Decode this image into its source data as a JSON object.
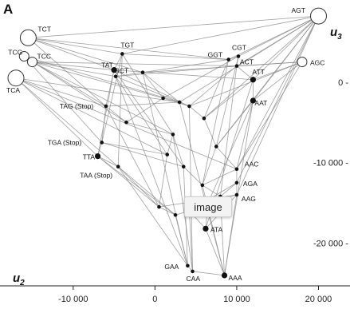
{
  "panel": {
    "letter": "A"
  },
  "axes": {
    "x_name": "u",
    "x_sub": "2",
    "y_name": "u",
    "y_sub": "3"
  },
  "overlay": {
    "button_label": "image"
  },
  "colors": {
    "edge": "#8a8a8a",
    "node": "#111111",
    "hollow_fill": "#ffffff",
    "axis": "#222222"
  },
  "chart_data": {
    "type": "scatter",
    "title": "",
    "xlabel": "u2",
    "ylabel": "u3",
    "x_ticks": [
      -10000,
      0,
      10000,
      20000
    ],
    "x_tick_labels": [
      "-10 000",
      "0",
      "10 000",
      "20 000"
    ],
    "y_ticks": [
      0,
      -10000,
      -20000
    ],
    "y_tick_labels": [
      "0 -",
      "-10 000 -",
      "-20 000 -"
    ],
    "xlim": [
      -17000,
      22000
    ],
    "ylim": [
      -25000,
      9000
    ],
    "grid": false,
    "nodes": [
      {
        "id": "TCT",
        "label": "TCT",
        "x": -15500,
        "y": 5500,
        "size": "large",
        "hollow": true
      },
      {
        "id": "TCG",
        "label": "TCG",
        "x": -16000,
        "y": 3200,
        "size": "small",
        "hollow": true
      },
      {
        "id": "TCC",
        "label": "TCC",
        "x": -15000,
        "y": 2500,
        "size": "small",
        "hollow": true
      },
      {
        "id": "TCA",
        "label": "TCA",
        "x": -17000,
        "y": 500,
        "size": "large",
        "hollow": true
      },
      {
        "id": "AGT",
        "label": "AGT",
        "x": 20000,
        "y": 8200,
        "size": "large",
        "hollow": true
      },
      {
        "id": "AGC",
        "label": "AGC",
        "x": 18000,
        "y": 2500,
        "size": "small",
        "hollow": true
      },
      {
        "id": "TGT",
        "label": "TGT",
        "x": -4000,
        "y": 3500,
        "size": "dot",
        "hollow": false
      },
      {
        "id": "TAT",
        "label": "TAT",
        "x": -5000,
        "y": 1500,
        "size": "medium",
        "hollow": false
      },
      {
        "id": "GCT",
        "label": "GCT",
        "x": -4800,
        "y": 700,
        "size": "dot",
        "hollow": false
      },
      {
        "id": "GGT",
        "label": "GGT",
        "x": 9000,
        "y": 2800,
        "size": "dot",
        "hollow": false
      },
      {
        "id": "CGT",
        "label": "CGT",
        "x": 10200,
        "y": 3200,
        "size": "dot",
        "hollow": false
      },
      {
        "id": "ACT",
        "label": "ACT",
        "x": 10000,
        "y": 2000,
        "size": "dot",
        "hollow": false
      },
      {
        "id": "ATT",
        "label": "ATT",
        "x": 12000,
        "y": 300,
        "size": "medium",
        "hollow": false
      },
      {
        "id": "AAT",
        "label": "AAT",
        "x": 12000,
        "y": -2300,
        "size": "medium",
        "hollow": false
      },
      {
        "id": "TAG",
        "label": "TAG (Stop)",
        "x": -6000,
        "y": -3000,
        "size": "dot",
        "hollow": false
      },
      {
        "id": "TGA",
        "label": "TGA (Stop)",
        "x": -6500,
        "y": -7500,
        "size": "dot",
        "hollow": false
      },
      {
        "id": "TTA",
        "label": "TTA",
        "x": -7000,
        "y": -9200,
        "size": "medium",
        "hollow": false
      },
      {
        "id": "TAA",
        "label": "TAA (Stop)",
        "x": -4500,
        "y": -10500,
        "size": "dot",
        "hollow": false
      },
      {
        "id": "AAC",
        "label": "AAC",
        "x": 10000,
        "y": -10800,
        "size": "dot",
        "hollow": false
      },
      {
        "id": "AGA",
        "label": "AGA",
        "x": 10000,
        "y": -12500,
        "size": "dot",
        "hollow": false
      },
      {
        "id": "AAG",
        "label": "AAG",
        "x": 10000,
        "y": -14000,
        "size": "dot",
        "hollow": false
      },
      {
        "id": "ATA",
        "label": "ATA",
        "x": 6200,
        "y": -18200,
        "size": "medium",
        "hollow": false
      },
      {
        "id": "GAA",
        "label": "GAA",
        "x": 4000,
        "y": -22800,
        "size": "dot",
        "hollow": false
      },
      {
        "id": "CAA",
        "label": "CAA",
        "x": 4600,
        "y": -23500,
        "size": "dot",
        "hollow": false
      },
      {
        "id": "AAA",
        "label": "AAA",
        "x": 8500,
        "y": -24000,
        "size": "medium",
        "hollow": false
      },
      {
        "id": "m1",
        "label": "",
        "x": -1500,
        "y": 1200,
        "size": "dot",
        "hollow": false
      },
      {
        "id": "m2",
        "label": "",
        "x": 3000,
        "y": -2500,
        "size": "dot",
        "hollow": false
      },
      {
        "id": "m3",
        "label": "",
        "x": 4200,
        "y": -3000,
        "size": "dot",
        "hollow": false
      },
      {
        "id": "m4",
        "label": "",
        "x": 2200,
        "y": -6500,
        "size": "dot",
        "hollow": false
      },
      {
        "id": "m5",
        "label": "",
        "x": 6000,
        "y": -4500,
        "size": "dot",
        "hollow": false
      },
      {
        "id": "m6",
        "label": "",
        "x": 7500,
        "y": -8000,
        "size": "dot",
        "hollow": false
      },
      {
        "id": "m7",
        "label": "",
        "x": 3500,
        "y": -10500,
        "size": "dot",
        "hollow": false
      },
      {
        "id": "m8",
        "label": "",
        "x": 1500,
        "y": -9000,
        "size": "dot",
        "hollow": false
      },
      {
        "id": "m9",
        "label": "",
        "x": 5800,
        "y": -12800,
        "size": "dot",
        "hollow": false
      },
      {
        "id": "m10",
        "label": "",
        "x": 8000,
        "y": -14200,
        "size": "dot",
        "hollow": false
      },
      {
        "id": "m11",
        "label": "",
        "x": 500,
        "y": -15500,
        "size": "dot",
        "hollow": false
      },
      {
        "id": "m12",
        "label": "",
        "x": 2500,
        "y": -16500,
        "size": "dot",
        "hollow": false
      },
      {
        "id": "m13",
        "label": "",
        "x": 4200,
        "y": -16000,
        "size": "dot",
        "hollow": false
      },
      {
        "id": "m14",
        "label": "",
        "x": 6500,
        "y": -15000,
        "size": "dot",
        "hollow": false
      },
      {
        "id": "m15",
        "label": "",
        "x": -3500,
        "y": -5000,
        "size": "dot",
        "hollow": false
      },
      {
        "id": "m16",
        "label": "",
        "x": 1000,
        "y": -2000,
        "size": "dot",
        "hollow": false
      }
    ],
    "edges": [
      [
        "TCT",
        "AGT"
      ],
      [
        "TCT",
        "TGT"
      ],
      [
        "TCT",
        "TAT"
      ],
      [
        "TCT",
        "TAG"
      ],
      [
        "TCT",
        "m1"
      ],
      [
        "TCT",
        "GGT"
      ],
      [
        "TCG",
        "TAG"
      ],
      [
        "TCG",
        "TGA"
      ],
      [
        "TCG",
        "m15"
      ],
      [
        "TCG",
        "m2"
      ],
      [
        "TCC",
        "TAT"
      ],
      [
        "TCC",
        "GCT"
      ],
      [
        "TCC",
        "m16"
      ],
      [
        "TCC",
        "m4"
      ],
      [
        "TCC",
        "ACT"
      ],
      [
        "TCA",
        "TAG"
      ],
      [
        "TCA",
        "TTA"
      ],
      [
        "TCA",
        "TAA"
      ],
      [
        "TCA",
        "m8"
      ],
      [
        "TCA",
        "m2"
      ],
      [
        "TCA",
        "AAC"
      ],
      [
        "AGT",
        "TGT"
      ],
      [
        "AGT",
        "GGT"
      ],
      [
        "AGT",
        "CGT"
      ],
      [
        "AGT",
        "ACT"
      ],
      [
        "AGT",
        "ATT"
      ],
      [
        "AGT",
        "AAT"
      ],
      [
        "AGT",
        "m2"
      ],
      [
        "AGT",
        "m5"
      ],
      [
        "AGT",
        "AAC"
      ],
      [
        "AGT",
        "AGA"
      ],
      [
        "AGT",
        "AAG"
      ],
      [
        "AGT",
        "m6"
      ],
      [
        "AGC",
        "AAT"
      ],
      [
        "AGC",
        "ATT"
      ],
      [
        "AGC",
        "ACT"
      ],
      [
        "AGC",
        "AAC"
      ],
      [
        "AGC",
        "m3"
      ],
      [
        "AGC",
        "m1"
      ],
      [
        "TGT",
        "TAT"
      ],
      [
        "TGT",
        "GGT"
      ],
      [
        "TGT",
        "TGA"
      ],
      [
        "TGT",
        "TAA"
      ],
      [
        "TGT",
        "m4"
      ],
      [
        "TAT",
        "TAG"
      ],
      [
        "TAT",
        "TTA"
      ],
      [
        "TAT",
        "ATT"
      ],
      [
        "TAT",
        "m3"
      ],
      [
        "TAT",
        "m7"
      ],
      [
        "GCT",
        "GGT"
      ],
      [
        "GCT",
        "ACT"
      ],
      [
        "GCT",
        "m2"
      ],
      [
        "GCT",
        "m8"
      ],
      [
        "GCT",
        "GAA"
      ],
      [
        "GGT",
        "CGT"
      ],
      [
        "GGT",
        "m5"
      ],
      [
        "GGT",
        "m9"
      ],
      [
        "CGT",
        "ACT"
      ],
      [
        "CGT",
        "m16"
      ],
      [
        "CGT",
        "m6"
      ],
      [
        "ACT",
        "ATT"
      ],
      [
        "ACT",
        "m3"
      ],
      [
        "ACT",
        "m10"
      ],
      [
        "ATT",
        "AAT"
      ],
      [
        "ATT",
        "m5"
      ],
      [
        "ATT",
        "ATA"
      ],
      [
        "AAT",
        "m6"
      ],
      [
        "AAT",
        "AAC"
      ],
      [
        "AAT",
        "m14"
      ],
      [
        "AAT",
        "AAA"
      ],
      [
        "TAG",
        "m2"
      ],
      [
        "TAG",
        "m15"
      ],
      [
        "TAG",
        "TGA"
      ],
      [
        "TAG",
        "m11"
      ],
      [
        "TGA",
        "TTA"
      ],
      [
        "TGA",
        "m7"
      ],
      [
        "TGA",
        "m8"
      ],
      [
        "TTA",
        "TAA"
      ],
      [
        "TTA",
        "m11"
      ],
      [
        "TTA",
        "m12"
      ],
      [
        "TAA",
        "m11"
      ],
      [
        "TAA",
        "m12"
      ],
      [
        "TAA",
        "GAA"
      ],
      [
        "AAC",
        "AGA"
      ],
      [
        "AAC",
        "m6"
      ],
      [
        "AAC",
        "m9"
      ],
      [
        "AGA",
        "AAG"
      ],
      [
        "AGA",
        "m13"
      ],
      [
        "AGA",
        "m10"
      ],
      [
        "AAG",
        "m14"
      ],
      [
        "AAG",
        "ATA"
      ],
      [
        "AAG",
        "AAA"
      ],
      [
        "AAG",
        "m11"
      ],
      [
        "ATA",
        "AAA"
      ],
      [
        "ATA",
        "m13"
      ],
      [
        "ATA",
        "m14"
      ],
      [
        "GAA",
        "CAA"
      ],
      [
        "GAA",
        "m12"
      ],
      [
        "GAA",
        "m7"
      ],
      [
        "GAA",
        "m1"
      ],
      [
        "CAA",
        "AAA"
      ],
      [
        "CAA",
        "m13"
      ],
      [
        "CAA",
        "m4"
      ],
      [
        "CAA",
        "m3"
      ],
      [
        "AAA",
        "m10"
      ],
      [
        "AAA",
        "m9"
      ],
      [
        "AAA",
        "m2"
      ],
      [
        "m1",
        "m16"
      ],
      [
        "m1",
        "m2"
      ],
      [
        "m2",
        "m3"
      ],
      [
        "m3",
        "m5"
      ],
      [
        "m4",
        "m8"
      ],
      [
        "m4",
        "m7"
      ],
      [
        "m5",
        "m6"
      ],
      [
        "m6",
        "m9"
      ],
      [
        "m7",
        "m9"
      ],
      [
        "m8",
        "m11"
      ],
      [
        "m9",
        "m10"
      ],
      [
        "m11",
        "m12"
      ],
      [
        "m12",
        "m13"
      ],
      [
        "m13",
        "m14"
      ],
      [
        "m14",
        "m10"
      ],
      [
        "m15",
        "m4"
      ],
      [
        "m15",
        "m16"
      ],
      [
        "m16",
        "m3"
      ]
    ]
  }
}
